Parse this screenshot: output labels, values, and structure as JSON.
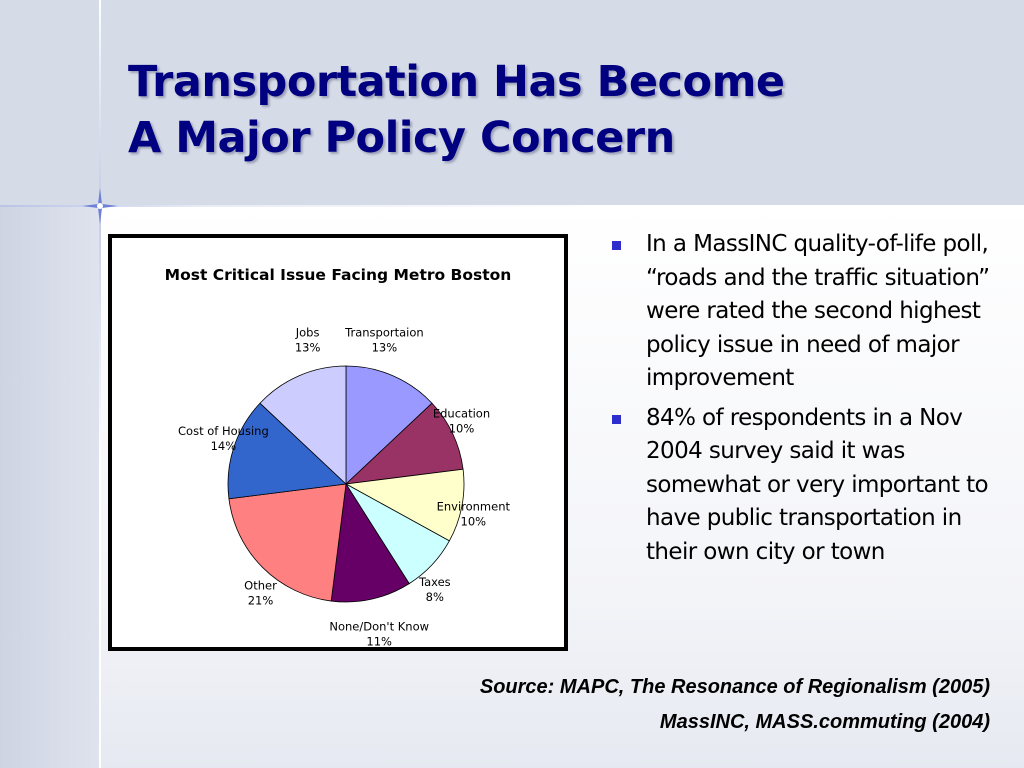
{
  "slide": {
    "title_line1": "Transportation Has Become",
    "title_line2": "A Major Policy Concern",
    "bullets": [
      "In a MassINC quality-of-life poll, “roads and the traffic situation” were rated the second highest policy issue in need of major improvement",
      "84% of respondents in a Nov 2004 survey said it was somewhat or very important to have public transportation in their own city or town"
    ],
    "source_line1": "Source:  MAPC, The Resonance of Regionalism (2005)",
    "source_line2": "MassINC, MASS.commuting (2004)",
    "colors": {
      "title": "#000080",
      "header_band": "#d6dbe8",
      "bullet": "#2e2ecc"
    }
  },
  "chart_data": {
    "type": "pie",
    "title": "Most Critical Issue Facing Metro Boston",
    "categories": [
      "Transportaion",
      "Education",
      "Environment",
      "Taxes",
      "None/Don't Know",
      "Other",
      "Cost of Housing",
      "Jobs"
    ],
    "values": [
      13,
      10,
      10,
      8,
      11,
      21,
      14,
      13
    ],
    "labels": [
      "13%",
      "10%",
      "10%",
      "8%",
      "11%",
      "21%",
      "14%",
      "13%"
    ],
    "colors": [
      "#9999ff",
      "#993366",
      "#ffffcc",
      "#ccffff",
      "#660066",
      "#ff8080",
      "#3366cc",
      "#ccccff"
    ],
    "unit": "%",
    "legend": "none"
  }
}
